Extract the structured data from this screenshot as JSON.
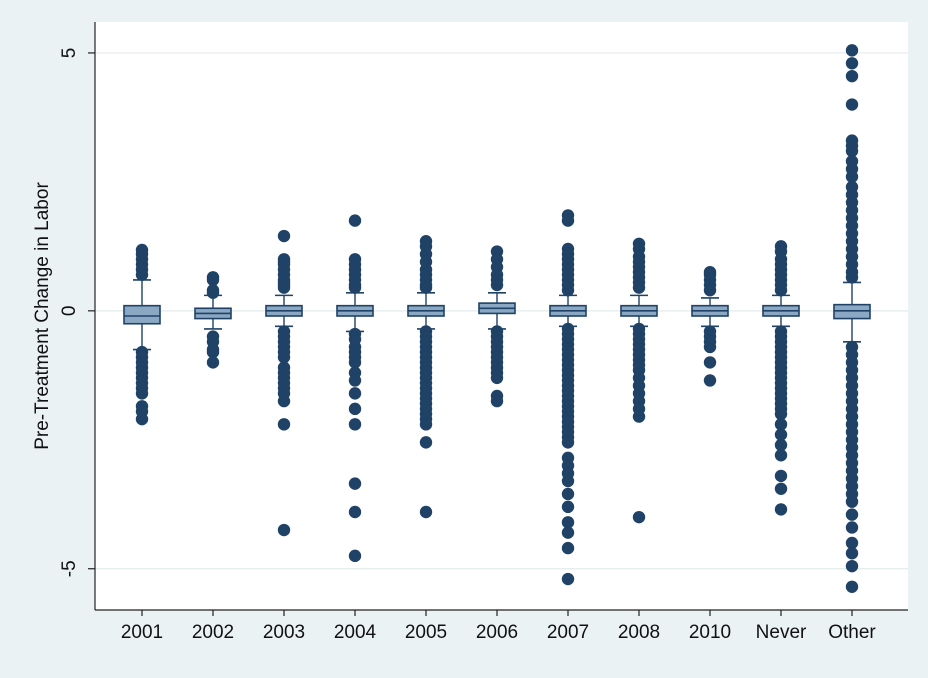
{
  "chart_data": {
    "type": "box",
    "title": "",
    "xlabel": "",
    "ylabel": "Pre-Treatment Change in Labor",
    "ylim": [
      -5.8,
      5.6
    ],
    "yticks": [
      -5,
      0,
      5
    ],
    "ytick_labels": [
      "-5",
      "0",
      "5"
    ],
    "grid": true,
    "legend": "none",
    "colors": {
      "marker": "#1f4266",
      "box_fill": "#8aa8c4",
      "box_line": "#1f4266",
      "grid": "#e3ebec",
      "background": "#eaf2f3",
      "plot_background": "#ffffff"
    },
    "categories": [
      "2001",
      "2002",
      "2003",
      "2004",
      "2005",
      "2006",
      "2007",
      "2008",
      "2010",
      "Never",
      "Other"
    ],
    "boxes": [
      {
        "q1": -0.25,
        "median": -0.1,
        "q3": 0.1,
        "whisker_low": -0.75,
        "whisker_high": 0.6,
        "outliers": [
          1.18,
          1.1,
          1.0,
          0.9,
          0.8,
          0.7,
          -0.8,
          -0.9,
          -1.0,
          -1.1,
          -1.2,
          -1.3,
          -1.4,
          -1.5,
          -1.6,
          -1.85,
          -1.95,
          -2.1
        ]
      },
      {
        "q1": -0.15,
        "median": -0.05,
        "q3": 0.05,
        "whisker_low": -0.35,
        "whisker_high": 0.3,
        "outliers": [
          0.65,
          0.6,
          0.4,
          0.35,
          -0.5,
          -0.6,
          -0.75,
          -0.8,
          -1.0
        ]
      },
      {
        "q1": -0.1,
        "median": 0.0,
        "q3": 0.1,
        "whisker_low": -0.3,
        "whisker_high": 0.3,
        "outliers": [
          1.45,
          1.0,
          0.95,
          0.9,
          0.8,
          0.7,
          0.6,
          0.55,
          0.5,
          0.45,
          -0.4,
          -0.5,
          -0.6,
          -0.7,
          -0.8,
          -0.9,
          -1.1,
          -1.2,
          -1.3,
          -1.4,
          -1.5,
          -1.6,
          -1.75,
          -2.2,
          -4.25
        ]
      },
      {
        "q1": -0.1,
        "median": 0.0,
        "q3": 0.1,
        "whisker_low": -0.4,
        "whisker_high": 0.35,
        "outliers": [
          1.75,
          1.0,
          0.9,
          0.8,
          0.7,
          0.6,
          0.5,
          0.45,
          -0.45,
          -0.55,
          -0.7,
          -0.8,
          -0.9,
          -1.0,
          -1.2,
          -1.35,
          -1.6,
          -1.9,
          -2.2,
          -3.35,
          -3.9,
          -4.75
        ]
      },
      {
        "q1": -0.1,
        "median": 0.0,
        "q3": 0.1,
        "whisker_low": -0.35,
        "whisker_high": 0.35,
        "outliers": [
          1.35,
          1.25,
          1.1,
          0.95,
          0.8,
          0.7,
          0.6,
          0.5,
          0.45,
          -0.4,
          -0.5,
          -0.6,
          -0.7,
          -0.8,
          -0.9,
          -1.0,
          -1.1,
          -1.2,
          -1.3,
          -1.4,
          -1.5,
          -1.6,
          -1.7,
          -1.8,
          -1.9,
          -2.0,
          -2.1,
          -2.2,
          -2.55,
          -3.9
        ]
      },
      {
        "q1": -0.05,
        "median": 0.05,
        "q3": 0.15,
        "whisker_low": -0.35,
        "whisker_high": 0.35,
        "outliers": [
          1.15,
          1.0,
          0.85,
          0.7,
          0.6,
          0.5,
          -0.4,
          -0.5,
          -0.6,
          -0.7,
          -0.8,
          -0.9,
          -1.0,
          -1.1,
          -1.2,
          -1.3,
          -1.65,
          -1.75
        ]
      },
      {
        "q1": -0.1,
        "median": 0.0,
        "q3": 0.1,
        "whisker_low": -0.3,
        "whisker_high": 0.3,
        "outliers": [
          1.85,
          1.75,
          1.2,
          1.1,
          1.0,
          0.9,
          0.8,
          0.7,
          0.6,
          0.5,
          0.4,
          -0.35,
          -0.45,
          -0.55,
          -0.65,
          -0.75,
          -0.85,
          -0.95,
          -1.05,
          -1.15,
          -1.25,
          -1.35,
          -1.45,
          -1.55,
          -1.65,
          -1.75,
          -1.85,
          -1.95,
          -2.05,
          -2.15,
          -2.25,
          -2.35,
          -2.45,
          -2.55,
          -2.85,
          -3.0,
          -3.15,
          -3.3,
          -3.55,
          -3.8,
          -4.1,
          -4.3,
          -4.6,
          -5.2
        ]
      },
      {
        "q1": -0.1,
        "median": 0.0,
        "q3": 0.1,
        "whisker_low": -0.3,
        "whisker_high": 0.3,
        "outliers": [
          1.3,
          1.2,
          1.05,
          0.95,
          0.85,
          0.75,
          0.65,
          0.55,
          0.45,
          -0.35,
          -0.45,
          -0.55,
          -0.65,
          -0.75,
          -0.85,
          -0.95,
          -1.05,
          -1.15,
          -1.3,
          -1.45,
          -1.6,
          -1.75,
          -1.9,
          -2.05,
          -4.0
        ]
      },
      {
        "q1": -0.1,
        "median": 0.0,
        "q3": 0.1,
        "whisker_low": -0.3,
        "whisker_high": 0.25,
        "outliers": [
          0.75,
          0.7,
          0.6,
          0.5,
          0.4,
          -0.4,
          -0.5,
          -0.6,
          -0.7,
          -1.0,
          -1.35
        ]
      },
      {
        "q1": -0.1,
        "median": 0.0,
        "q3": 0.1,
        "whisker_low": -0.3,
        "whisker_high": 0.3,
        "outliers": [
          1.25,
          1.15,
          1.0,
          0.9,
          0.8,
          0.7,
          0.6,
          0.5,
          0.4,
          -0.4,
          -0.5,
          -0.6,
          -0.7,
          -0.8,
          -0.9,
          -1.0,
          -1.1,
          -1.2,
          -1.3,
          -1.4,
          -1.5,
          -1.6,
          -1.7,
          -1.8,
          -1.9,
          -2.0,
          -2.2,
          -2.4,
          -2.6,
          -2.8,
          -3.2,
          -3.45,
          -3.85
        ]
      },
      {
        "q1": -0.15,
        "median": 0.0,
        "q3": 0.12,
        "whisker_low": -0.6,
        "whisker_high": 0.55,
        "outliers": [
          5.05,
          4.8,
          4.55,
          4.0,
          3.3,
          3.2,
          3.1,
          2.9,
          2.75,
          2.6,
          2.4,
          2.25,
          2.1,
          1.95,
          1.8,
          1.65,
          1.5,
          1.35,
          1.2,
          1.05,
          0.9,
          0.75,
          0.65,
          -0.7,
          -0.85,
          -1.0,
          -1.15,
          -1.3,
          -1.45,
          -1.6,
          -1.75,
          -1.9,
          -2.05,
          -2.2,
          -2.35,
          -2.5,
          -2.65,
          -2.8,
          -2.95,
          -3.1,
          -3.25,
          -3.4,
          -3.55,
          -3.7,
          -3.95,
          -4.2,
          -4.5,
          -4.7,
          -4.95,
          -5.35
        ]
      }
    ]
  }
}
